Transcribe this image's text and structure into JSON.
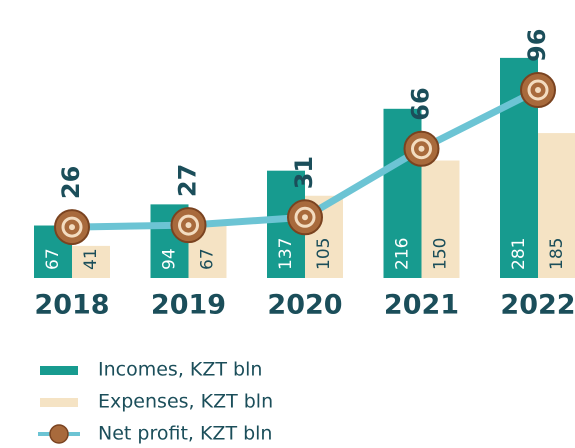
{
  "chart_data": {
    "type": "bar",
    "categories": [
      "2018",
      "2019",
      "2020",
      "2021",
      "2022"
    ],
    "series": [
      {
        "name": "Incomes, KZT bln",
        "color": "#179b8f",
        "values": [
          67,
          94,
          137,
          216,
          281
        ]
      },
      {
        "name": "Expenses, KZT bln",
        "color": "#f5e3c4",
        "values": [
          41,
          67,
          105,
          150,
          185
        ]
      },
      {
        "name": "Net profit, KZT bln",
        "color": "#6cc4d4",
        "type": "line",
        "axis": "y2",
        "values": [
          26,
          27,
          31,
          66,
          96
        ]
      }
    ],
    "ylim": [
      0,
      300
    ],
    "y2lim": [
      0,
      120
    ]
  }
}
